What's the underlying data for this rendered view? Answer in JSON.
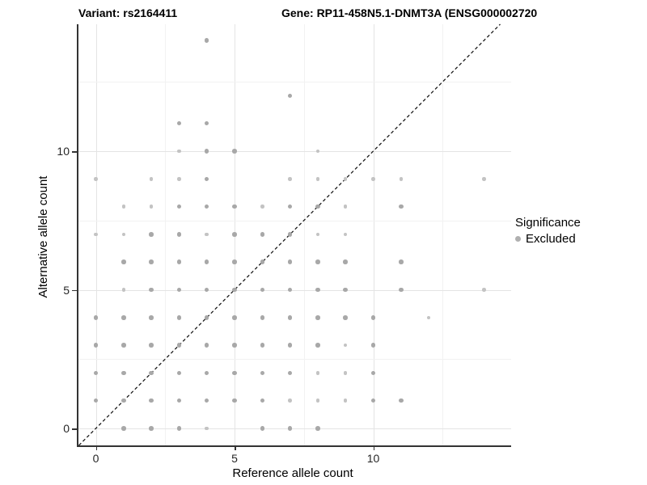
{
  "header": {
    "variant_title": "Variant: rs2164411",
    "gene_title": "Gene: RP11-458N5.1-DNMT3A (ENSG000002720"
  },
  "legend": {
    "title": "Significance",
    "items": [
      {
        "label": "Excluded",
        "color": "#b0b0b0"
      }
    ]
  },
  "colors": {
    "dot_normal": "#a8a8a8",
    "dot_light": "#c3c3c3",
    "grid_major": "#e4e4e4",
    "grid_minor": "#f2f2f2",
    "axis": "#333333",
    "diagonal": "#1a1a1a"
  },
  "chart_data": {
    "type": "scatter",
    "title": "Variant: rs2164411 | Gene: RP11-458N5.1-DNMT3A (ENSG000002720",
    "xlabel": "Reference allele count",
    "ylabel": "Alternative allele count",
    "x_ticks": [
      0,
      5,
      10
    ],
    "y_ticks": [
      0,
      5,
      10
    ],
    "xlim": [
      -0.7,
      15.0
    ],
    "ylim": [
      -0.65,
      14.6
    ],
    "grid": "major+minor",
    "legend_position": "right",
    "diagonal_line": {
      "equation": "y = x",
      "style": "dashed",
      "color": "#1a1a1a"
    },
    "point_format": "[x, y, size_class] where size_class 2 = normal, 1 = small/faint",
    "series": [
      {
        "name": "Excluded",
        "color": "#a8a8a8",
        "points": [
          [
            1,
            0,
            2
          ],
          [
            2,
            0,
            2
          ],
          [
            3,
            0,
            2
          ],
          [
            4,
            0,
            1
          ],
          [
            6,
            0,
            2
          ],
          [
            7,
            0,
            2
          ],
          [
            8,
            0,
            2
          ],
          [
            0,
            1,
            2
          ],
          [
            1,
            1,
            2
          ],
          [
            2,
            1,
            2
          ],
          [
            3,
            1,
            2
          ],
          [
            4,
            1,
            2
          ],
          [
            5,
            1,
            2
          ],
          [
            6,
            1,
            2
          ],
          [
            7,
            1,
            1
          ],
          [
            8,
            1,
            1
          ],
          [
            9,
            1,
            1
          ],
          [
            10,
            1,
            2
          ],
          [
            11,
            1,
            2
          ],
          [
            0,
            2,
            2
          ],
          [
            1,
            2,
            2
          ],
          [
            2,
            2,
            2
          ],
          [
            3,
            2,
            2
          ],
          [
            4,
            2,
            2
          ],
          [
            5,
            2,
            2
          ],
          [
            6,
            2,
            2
          ],
          [
            7,
            2,
            2
          ],
          [
            8,
            2,
            1
          ],
          [
            9,
            2,
            1
          ],
          [
            10,
            2,
            2
          ],
          [
            0,
            3,
            2
          ],
          [
            1,
            3,
            2
          ],
          [
            2,
            3,
            2
          ],
          [
            3,
            3,
            2
          ],
          [
            4,
            3,
            2
          ],
          [
            5,
            3,
            2
          ],
          [
            6,
            3,
            2
          ],
          [
            7,
            3,
            2
          ],
          [
            8,
            3,
            2
          ],
          [
            9,
            3,
            1
          ],
          [
            10,
            3,
            2
          ],
          [
            0,
            4,
            2
          ],
          [
            1,
            4,
            2
          ],
          [
            2,
            4,
            2
          ],
          [
            3,
            4,
            2
          ],
          [
            4,
            4,
            2
          ],
          [
            5,
            4,
            2
          ],
          [
            6,
            4,
            2
          ],
          [
            7,
            4,
            2
          ],
          [
            8,
            4,
            2
          ],
          [
            9,
            4,
            2
          ],
          [
            10,
            4,
            2
          ],
          [
            12,
            4,
            1
          ],
          [
            1,
            5,
            1
          ],
          [
            2,
            5,
            2
          ],
          [
            3,
            5,
            2
          ],
          [
            4,
            5,
            2
          ],
          [
            5,
            5,
            2
          ],
          [
            6,
            5,
            2
          ],
          [
            7,
            5,
            2
          ],
          [
            8,
            5,
            2
          ],
          [
            9,
            5,
            2
          ],
          [
            11,
            5,
            2
          ],
          [
            14,
            5,
            1
          ],
          [
            1,
            6,
            2
          ],
          [
            2,
            6,
            2
          ],
          [
            3,
            6,
            2
          ],
          [
            4,
            6,
            2
          ],
          [
            5,
            6,
            2
          ],
          [
            6,
            6,
            2
          ],
          [
            7,
            6,
            2
          ],
          [
            8,
            6,
            2
          ],
          [
            9,
            6,
            2
          ],
          [
            11,
            6,
            2
          ],
          [
            0,
            7,
            1
          ],
          [
            1,
            7,
            1
          ],
          [
            2,
            7,
            2
          ],
          [
            3,
            7,
            2
          ],
          [
            4,
            7,
            1
          ],
          [
            5,
            7,
            2
          ],
          [
            6,
            7,
            2
          ],
          [
            7,
            7,
            2
          ],
          [
            8,
            7,
            1
          ],
          [
            9,
            7,
            1
          ],
          [
            1,
            8,
            1
          ],
          [
            2,
            8,
            1
          ],
          [
            3,
            8,
            2
          ],
          [
            4,
            8,
            2
          ],
          [
            5,
            8,
            2
          ],
          [
            6,
            8,
            1
          ],
          [
            7,
            8,
            2
          ],
          [
            8,
            8,
            2
          ],
          [
            9,
            8,
            1
          ],
          [
            11,
            8,
            2
          ],
          [
            0,
            9,
            1
          ],
          [
            2,
            9,
            1
          ],
          [
            3,
            9,
            1
          ],
          [
            4,
            9,
            2
          ],
          [
            7,
            9,
            1
          ],
          [
            8,
            9,
            1
          ],
          [
            9,
            9,
            1
          ],
          [
            10,
            9,
            1
          ],
          [
            11,
            9,
            1
          ],
          [
            14,
            9,
            1
          ],
          [
            3,
            10,
            1
          ],
          [
            4,
            10,
            2
          ],
          [
            5,
            10,
            2
          ],
          [
            8,
            10,
            1
          ],
          [
            3,
            11,
            2
          ],
          [
            4,
            11,
            2
          ],
          [
            7,
            12,
            2
          ],
          [
            4,
            14,
            2
          ]
        ]
      }
    ]
  }
}
